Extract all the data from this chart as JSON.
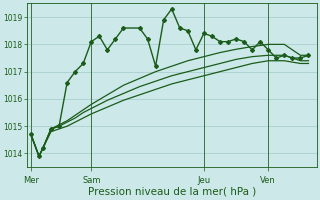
{
  "background_color": "#cce8e8",
  "plot_bg_color": "#cce8e8",
  "line_color": "#1a5c1a",
  "grid_color": "#aacece",
  "xlabel": "Pression niveau de la mer( hPa )",
  "xlabel_fontsize": 7.5,
  "ylim": [
    1013.5,
    1019.5
  ],
  "yticks": [
    1014,
    1015,
    1016,
    1017,
    1018,
    1019
  ],
  "xlim": [
    0,
    36
  ],
  "day_labels": [
    "Mer",
    "Sam",
    "Jeu",
    "Ven"
  ],
  "day_positions": [
    0.5,
    8,
    22,
    30
  ],
  "vline_positions": [
    0.5,
    8,
    22,
    30
  ],
  "series1_x": [
    0.5,
    1.5,
    2,
    3,
    4,
    5,
    6,
    7,
    8,
    9,
    10,
    11,
    12,
    14,
    15,
    16,
    17,
    18,
    19,
    20,
    21,
    22,
    23,
    24,
    25,
    26,
    27,
    28,
    29,
    30,
    31,
    32,
    33,
    34,
    35
  ],
  "series1_y": [
    1014.7,
    1013.9,
    1014.2,
    1014.9,
    1015.0,
    1016.6,
    1017.0,
    1017.3,
    1018.1,
    1018.3,
    1017.8,
    1018.2,
    1018.6,
    1018.6,
    1018.2,
    1017.2,
    1018.9,
    1019.3,
    1018.6,
    1018.5,
    1017.8,
    1018.4,
    1018.3,
    1018.1,
    1018.1,
    1018.2,
    1018.1,
    1017.8,
    1018.1,
    1017.8,
    1017.5,
    1017.6,
    1017.5,
    1017.5,
    1017.6
  ],
  "series2_x": [
    0.5,
    1.5,
    2,
    3,
    4,
    5,
    6,
    7,
    8,
    10,
    12,
    14,
    16,
    18,
    20,
    22,
    24,
    26,
    28,
    30,
    32,
    34,
    35
  ],
  "series2_y": [
    1014.7,
    1013.9,
    1014.2,
    1014.9,
    1015.05,
    1015.2,
    1015.4,
    1015.6,
    1015.8,
    1016.15,
    1016.5,
    1016.75,
    1017.0,
    1017.2,
    1017.4,
    1017.55,
    1017.7,
    1017.82,
    1017.92,
    1018.0,
    1018.0,
    1017.6,
    1017.6
  ],
  "series3_x": [
    0.5,
    1.5,
    2,
    3,
    4,
    5,
    6,
    7,
    8,
    10,
    12,
    14,
    16,
    18,
    20,
    22,
    24,
    26,
    28,
    30,
    32,
    34,
    35
  ],
  "series3_y": [
    1014.7,
    1013.9,
    1014.2,
    1014.9,
    1015.0,
    1015.15,
    1015.3,
    1015.5,
    1015.65,
    1015.95,
    1016.2,
    1016.45,
    1016.65,
    1016.85,
    1017.0,
    1017.15,
    1017.3,
    1017.45,
    1017.55,
    1017.6,
    1017.6,
    1017.4,
    1017.4
  ],
  "series4_x": [
    0.5,
    1.5,
    2,
    3,
    4,
    5,
    6,
    7,
    8,
    10,
    12,
    14,
    16,
    18,
    20,
    22,
    24,
    26,
    28,
    30,
    32,
    34,
    35
  ],
  "series4_y": [
    1014.7,
    1013.9,
    1014.2,
    1014.8,
    1014.9,
    1015.0,
    1015.15,
    1015.3,
    1015.45,
    1015.7,
    1015.95,
    1016.15,
    1016.35,
    1016.55,
    1016.7,
    1016.85,
    1017.0,
    1017.15,
    1017.3,
    1017.4,
    1017.4,
    1017.3,
    1017.3
  ]
}
